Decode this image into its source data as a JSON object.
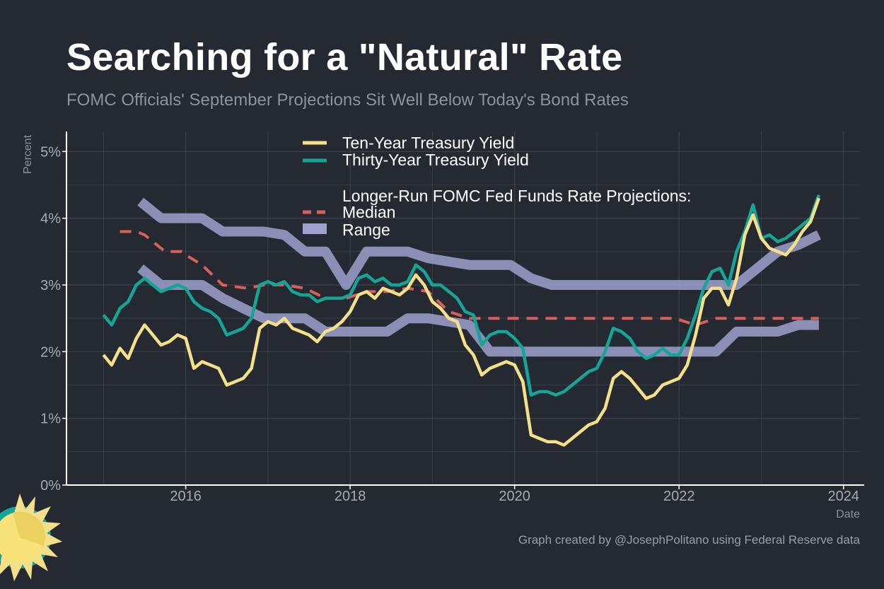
{
  "header": {
    "title": "Searching for a \"Natural\" Rate",
    "subtitle": "FOMC Officials' September Projections Sit Well Below Today's Bond Rates"
  },
  "footer": {
    "credit": "Graph created by @JosephPolitano using Federal Reserve data"
  },
  "colors": {
    "background": "#252931",
    "ten_year": "#f5e08a",
    "thirty_year": "#14a596",
    "median": "#d9605a",
    "range": "#9ea1cc",
    "grid": "#3d414a",
    "axis": "#ffffff"
  },
  "chart_data": {
    "type": "line",
    "xlabel": "Date",
    "ylabel": "Percent",
    "xlim": [
      2014.55,
      2024.2
    ],
    "ylim": [
      0,
      5.3
    ],
    "x_ticks": [
      2016,
      2018,
      2020,
      2022,
      2024
    ],
    "x_tick_labels": [
      "2016",
      "2018",
      "2020",
      "2022",
      "2024"
    ],
    "y_ticks": [
      0,
      1,
      2,
      3,
      4,
      5
    ],
    "y_tick_labels": [
      "0%",
      "1%",
      "2%",
      "3%",
      "4%",
      "5%"
    ],
    "grid": true,
    "legend_position": "top-center",
    "legend": {
      "ten_year": "Ten-Year Treasury Yield",
      "thirty_year": "Thirty-Year Treasury Yield",
      "group_title": "Longer-Run FOMC Fed Funds Rate Projections:",
      "median": "Median",
      "range": "Range"
    },
    "series": [
      {
        "name": "Ten-Year Treasury Yield",
        "x": [
          2015.0,
          2015.1,
          2015.2,
          2015.3,
          2015.4,
          2015.5,
          2015.6,
          2015.7,
          2015.8,
          2015.9,
          2016.0,
          2016.1,
          2016.2,
          2016.3,
          2016.4,
          2016.5,
          2016.6,
          2016.7,
          2016.8,
          2016.9,
          2017.0,
          2017.1,
          2017.2,
          2017.3,
          2017.4,
          2017.5,
          2017.6,
          2017.7,
          2017.8,
          2017.9,
          2018.0,
          2018.1,
          2018.2,
          2018.3,
          2018.4,
          2018.5,
          2018.6,
          2018.7,
          2018.8,
          2018.9,
          2019.0,
          2019.1,
          2019.2,
          2019.3,
          2019.4,
          2019.5,
          2019.6,
          2019.7,
          2019.8,
          2019.9,
          2020.0,
          2020.1,
          2020.2,
          2020.3,
          2020.4,
          2020.5,
          2020.6,
          2020.7,
          2020.8,
          2020.9,
          2021.0,
          2021.1,
          2021.2,
          2021.3,
          2021.4,
          2021.5,
          2021.6,
          2021.7,
          2021.8,
          2021.9,
          2022.0,
          2022.1,
          2022.2,
          2022.3,
          2022.4,
          2022.5,
          2022.6,
          2022.7,
          2022.8,
          2022.9,
          2023.0,
          2023.1,
          2023.2,
          2023.3,
          2023.4,
          2023.5,
          2023.6,
          2023.7
        ],
        "values": [
          1.95,
          1.8,
          2.05,
          1.9,
          2.2,
          2.4,
          2.25,
          2.1,
          2.15,
          2.25,
          2.2,
          1.75,
          1.85,
          1.8,
          1.75,
          1.5,
          1.55,
          1.6,
          1.75,
          2.35,
          2.45,
          2.4,
          2.5,
          2.35,
          2.3,
          2.25,
          2.15,
          2.3,
          2.35,
          2.45,
          2.6,
          2.85,
          2.9,
          2.8,
          2.95,
          2.9,
          2.85,
          2.95,
          3.15,
          3.0,
          2.75,
          2.65,
          2.5,
          2.45,
          2.1,
          1.95,
          1.65,
          1.75,
          1.8,
          1.85,
          1.8,
          1.55,
          0.75,
          0.7,
          0.65,
          0.65,
          0.6,
          0.7,
          0.8,
          0.9,
          0.95,
          1.15,
          1.6,
          1.7,
          1.6,
          1.45,
          1.3,
          1.35,
          1.5,
          1.55,
          1.6,
          1.8,
          2.25,
          2.8,
          2.95,
          2.95,
          2.7,
          3.1,
          3.75,
          4.05,
          3.7,
          3.55,
          3.5,
          3.45,
          3.6,
          3.8,
          3.95,
          4.3
        ]
      },
      {
        "name": "Thirty-Year Treasury Yield",
        "x": [
          2015.0,
          2015.1,
          2015.2,
          2015.3,
          2015.4,
          2015.5,
          2015.6,
          2015.7,
          2015.8,
          2015.9,
          2016.0,
          2016.1,
          2016.2,
          2016.3,
          2016.4,
          2016.5,
          2016.6,
          2016.7,
          2016.8,
          2016.9,
          2017.0,
          2017.1,
          2017.2,
          2017.3,
          2017.4,
          2017.5,
          2017.6,
          2017.7,
          2017.8,
          2017.9,
          2018.0,
          2018.1,
          2018.2,
          2018.3,
          2018.4,
          2018.5,
          2018.6,
          2018.7,
          2018.8,
          2018.9,
          2019.0,
          2019.1,
          2019.2,
          2019.3,
          2019.4,
          2019.5,
          2019.6,
          2019.7,
          2019.8,
          2019.9,
          2020.0,
          2020.1,
          2020.2,
          2020.3,
          2020.4,
          2020.5,
          2020.6,
          2020.7,
          2020.8,
          2020.9,
          2021.0,
          2021.1,
          2021.2,
          2021.3,
          2021.4,
          2021.5,
          2021.6,
          2021.7,
          2021.8,
          2021.9,
          2022.0,
          2022.1,
          2022.2,
          2022.3,
          2022.4,
          2022.5,
          2022.6,
          2022.7,
          2022.8,
          2022.9,
          2023.0,
          2023.1,
          2023.2,
          2023.3,
          2023.4,
          2023.5,
          2023.6,
          2023.7
        ],
        "values": [
          2.55,
          2.4,
          2.65,
          2.75,
          3.0,
          3.1,
          3.0,
          2.9,
          2.95,
          3.0,
          2.95,
          2.75,
          2.65,
          2.6,
          2.5,
          2.25,
          2.3,
          2.35,
          2.5,
          3.0,
          3.05,
          3.0,
          3.05,
          2.9,
          2.85,
          2.85,
          2.75,
          2.8,
          2.8,
          2.8,
          2.85,
          3.1,
          3.15,
          3.05,
          3.1,
          3.0,
          3.0,
          3.05,
          3.3,
          3.2,
          3.0,
          3.0,
          2.9,
          2.8,
          2.6,
          2.55,
          2.1,
          2.25,
          2.3,
          2.3,
          2.2,
          2.05,
          1.35,
          1.4,
          1.4,
          1.35,
          1.4,
          1.5,
          1.6,
          1.7,
          1.75,
          2.0,
          2.35,
          2.3,
          2.2,
          2.0,
          1.9,
          1.95,
          2.05,
          1.95,
          1.95,
          2.2,
          2.55,
          2.95,
          3.2,
          3.25,
          3.0,
          3.5,
          3.8,
          4.2,
          3.7,
          3.75,
          3.65,
          3.7,
          3.8,
          3.9,
          4.0,
          4.35
        ]
      },
      {
        "name": "Median",
        "x": [
          2015.2,
          2015.4,
          2015.5,
          2015.75,
          2015.95,
          2016.0,
          2016.2,
          2016.45,
          2016.75,
          2016.95,
          2017.2,
          2017.45,
          2017.7,
          2017.95,
          2018.2,
          2018.45,
          2018.7,
          2018.95,
          2019.2,
          2019.45,
          2019.7,
          2019.95,
          2020.2,
          2020.45,
          2020.7,
          2020.95,
          2021.2,
          2021.45,
          2021.7,
          2021.95,
          2022.2,
          2022.45,
          2022.7,
          2022.95,
          2023.2,
          2023.45,
          2023.7
        ],
        "values": [
          3.8,
          3.8,
          3.75,
          3.5,
          3.5,
          3.45,
          3.3,
          3.0,
          2.95,
          3.0,
          3.0,
          2.95,
          2.8,
          2.8,
          2.9,
          2.9,
          2.95,
          2.9,
          2.6,
          2.5,
          2.5,
          2.5,
          2.5,
          2.5,
          2.5,
          2.5,
          2.5,
          2.5,
          2.5,
          2.5,
          2.4,
          2.5,
          2.5,
          2.5,
          2.5,
          2.5,
          2.5
        ]
      },
      {
        "name": "Range",
        "x": [
          2015.45,
          2015.7,
          2016.2,
          2016.45,
          2016.95,
          2017.2,
          2017.45,
          2017.7,
          2017.95,
          2018.2,
          2018.45,
          2018.7,
          2018.95,
          2019.2,
          2019.45,
          2019.7,
          2019.95,
          2020.2,
          2020.45,
          2020.7,
          2020.95,
          2021.2,
          2021.45,
          2021.7,
          2021.95,
          2022.2,
          2022.45,
          2022.7,
          2022.95,
          2023.2,
          2023.45,
          2023.7
        ],
        "low": [
          3.25,
          3.0,
          3.0,
          2.8,
          2.5,
          2.5,
          2.5,
          2.3,
          2.3,
          2.3,
          2.3,
          2.5,
          2.5,
          2.45,
          2.4,
          2.0,
          2.0,
          2.0,
          2.0,
          2.0,
          2.0,
          2.0,
          2.0,
          2.0,
          2.0,
          2.0,
          2.0,
          2.3,
          2.3,
          2.3,
          2.4,
          2.4
        ],
        "high": [
          4.25,
          4.0,
          4.0,
          3.8,
          3.8,
          3.75,
          3.5,
          3.5,
          3.0,
          3.5,
          3.5,
          3.5,
          3.4,
          3.35,
          3.3,
          3.3,
          3.3,
          3.1,
          3.0,
          3.0,
          3.0,
          3.0,
          3.0,
          3.0,
          3.0,
          3.0,
          3.0,
          3.0,
          3.25,
          3.5,
          3.6,
          3.75
        ]
      }
    ]
  }
}
